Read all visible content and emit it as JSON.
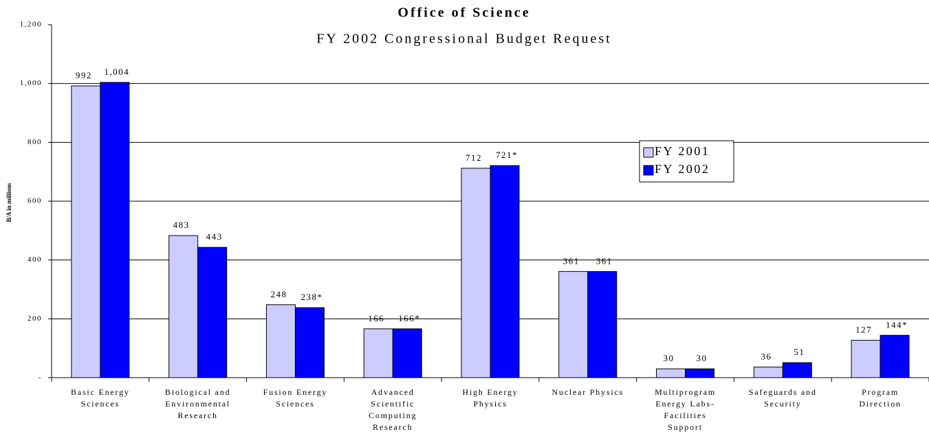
{
  "chart_data": {
    "type": "bar",
    "title": "Office of Science",
    "subtitle": "FY 2002 Congressional Budget Request",
    "y_label": "B/A in millions",
    "categories": [
      [
        "Basic Energy",
        "Sciences"
      ],
      [
        "Biological and",
        "Environmental",
        "Research"
      ],
      [
        "Fusion Energy",
        "Sciences"
      ],
      [
        "Advanced",
        "Scientific",
        "Computing",
        "Research"
      ],
      [
        "High Energy",
        "Physics"
      ],
      [
        "Nuclear Physics"
      ],
      [
        "Multiprogram",
        "Energy Labs-",
        "Facilities",
        "Support"
      ],
      [
        "Safeguards and",
        "Security"
      ],
      [
        "Program",
        "Direction"
      ]
    ],
    "series": [
      {
        "name": "FY 2001",
        "color": "#ccccff",
        "values": [
          992,
          483,
          248,
          166,
          712,
          361,
          30,
          36,
          127
        ],
        "value_labels": [
          "992",
          "483",
          "248",
          "166",
          "712",
          "361",
          "30",
          "36",
          "127"
        ]
      },
      {
        "name": "FY 2002",
        "color": "#0000ff",
        "values": [
          1004,
          443,
          238,
          166,
          721,
          361,
          30,
          51,
          144
        ],
        "value_labels": [
          "1,004",
          "443",
          "238*",
          "166*",
          "721*",
          "361",
          "30",
          "51",
          "144*"
        ]
      }
    ],
    "ylim": [
      0,
      1200
    ],
    "yticks": [
      {
        "value": 0,
        "label": "-"
      },
      200,
      400,
      600,
      800,
      {
        "value": 1000,
        "label": "1,000"
      },
      {
        "value": 1200,
        "label": "1,200"
      }
    ],
    "grid": true,
    "legend": "upper right"
  }
}
